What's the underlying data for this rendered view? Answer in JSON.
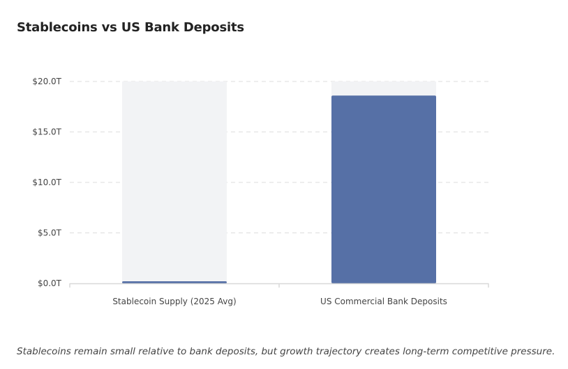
{
  "chart_data": {
    "type": "bar",
    "title": "Stablecoins vs US Bank Deposits",
    "categories": [
      "Stablecoin Supply (2025 Avg)",
      "US Commercial Bank Deposits"
    ],
    "values": [
      0.2,
      18.6
    ],
    "unit": "trillion USD",
    "xlabel": "",
    "ylabel": "",
    "ylim": [
      0,
      20
    ],
    "yticks": [
      0,
      5,
      10,
      15,
      20
    ],
    "ytick_labels": [
      "$0.0T",
      "$5.0T",
      "$10.0T",
      "$15.0T",
      "$20.0T"
    ],
    "grid": true,
    "legend": "none",
    "colors": {
      "bar": "#5670a6",
      "bar_background": "#f2f3f5",
      "grid": "#dddddd",
      "axis": "#d8d8d8"
    }
  },
  "caption": "Stablecoins remain small relative to bank deposits, but growth trajectory creates long-term competitive pressure."
}
